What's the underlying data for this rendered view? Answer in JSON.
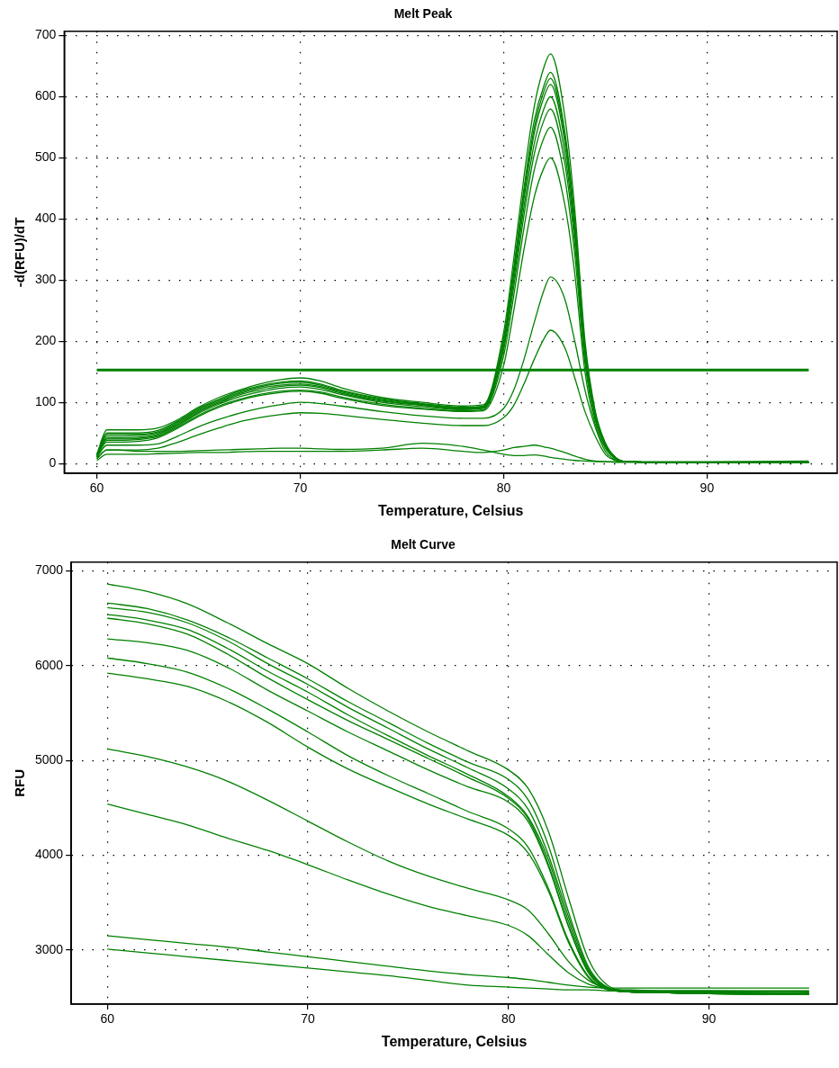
{
  "chart_data": [
    {
      "type": "line",
      "title": "Melt Peak",
      "xlabel": "Temperature, Celsius",
      "ylabel": "-d(RFU)/dT",
      "xlim": [
        58.4,
        96.4
      ],
      "xticks": [
        60,
        70,
        80,
        90
      ],
      "ylim": [
        -16,
        707
      ],
      "yticks": [
        0,
        100,
        200,
        300,
        400,
        500,
        600,
        700
      ],
      "grid": true,
      "x": [
        60,
        60.5,
        61,
        62,
        63,
        64,
        65,
        66,
        67,
        68,
        69,
        70,
        71,
        72,
        74,
        76,
        78,
        79,
        80,
        80.5,
        81,
        81.5,
        82,
        82.3,
        83,
        83.5,
        84,
        84.5,
        85,
        85.5,
        86,
        88,
        90,
        95
      ],
      "ref_lines": [
        {
          "axis": "y",
          "value": 153,
          "color": "#008000"
        }
      ],
      "series": [
        {
          "color": "#008000",
          "values": [
            15,
            55,
            55,
            55,
            58,
            72,
            92,
            108,
            120,
            130,
            137,
            140,
            135,
            124,
            108,
            100,
            94,
            96,
            214,
            335,
            469,
            583,
            650,
            670,
            570,
            415,
            201,
            87,
            34,
            10,
            3,
            2,
            2,
            2
          ]
        },
        {
          "color": "#008000",
          "values": [
            15,
            50,
            50,
            50,
            54,
            70,
            90,
            105,
            118,
            127,
            133,
            135,
            130,
            120,
            106,
            98,
            92,
            94,
            205,
            320,
            450,
            560,
            620,
            640,
            545,
            397,
            192,
            83,
            32,
            10,
            3,
            2,
            2,
            2
          ]
        },
        {
          "color": "#008000",
          "values": [
            14,
            48,
            48,
            48,
            52,
            68,
            88,
            103,
            116,
            125,
            131,
            133,
            128,
            119,
            105,
            97,
            91,
            93,
            202,
            315,
            441,
            548,
            611,
            630,
            536,
            391,
            189,
            82,
            32,
            9,
            3,
            2,
            2,
            2
          ]
        },
        {
          "color": "#008000",
          "values": [
            14,
            45,
            45,
            46,
            50,
            66,
            86,
            101,
            114,
            123,
            128,
            130,
            126,
            117,
            103,
            96,
            90,
            92,
            198,
            310,
            434,
            539,
            601,
            620,
            527,
            384,
            186,
            81,
            31,
            9,
            3,
            2,
            2,
            2
          ]
        },
        {
          "color": "#008000",
          "values": [
            13,
            42,
            42,
            43,
            48,
            64,
            84,
            99,
            112,
            120,
            126,
            128,
            124,
            115,
            102,
            95,
            89,
            91,
            192,
            300,
            420,
            522,
            582,
            600,
            510,
            372,
            180,
            78,
            30,
            9,
            3,
            2,
            2,
            2
          ]
        },
        {
          "color": "#008000",
          "values": [
            13,
            40,
            40,
            41,
            46,
            62,
            82,
            97,
            109,
            117,
            123,
            125,
            121,
            113,
            100,
            93,
            88,
            90,
            186,
            290,
            406,
            505,
            563,
            580,
            493,
            360,
            174,
            75,
            29,
            9,
            3,
            2,
            2,
            2
          ]
        },
        {
          "color": "#008000",
          "values": [
            12,
            38,
            38,
            39,
            44,
            60,
            79,
            94,
            105,
            113,
            118,
            120,
            117,
            109,
            97,
            90,
            86,
            88,
            176,
            275,
            385,
            479,
            534,
            550,
            468,
            341,
            165,
            72,
            28,
            8,
            3,
            2,
            2,
            2
          ]
        },
        {
          "color": "#008000",
          "values": [
            12,
            35,
            35,
            36,
            42,
            58,
            77,
            92,
            103,
            111,
            116,
            118,
            115,
            107,
            95,
            89,
            85,
            86,
            160,
            250,
            350,
            435,
            485,
            500,
            425,
            310,
            150,
            65,
            25,
            8,
            3,
            2,
            2,
            2
          ]
        },
        {
          "color": "#008000",
          "values": [
            10,
            30,
            30,
            30,
            32,
            45,
            60,
            72,
            82,
            90,
            96,
            100,
            98,
            94,
            85,
            78,
            74,
            74,
            90,
            120,
            170,
            230,
            285,
            305,
            270,
            200,
            120,
            60,
            20,
            6,
            3,
            2,
            2,
            2
          ]
        },
        {
          "color": "#008000",
          "values": [
            8,
            22,
            22,
            22,
            25,
            35,
            47,
            58,
            68,
            75,
            80,
            83,
            82,
            79,
            72,
            66,
            62,
            62,
            75,
            95,
            130,
            170,
            205,
            218,
            190,
            140,
            85,
            45,
            15,
            5,
            3,
            2,
            2,
            2
          ]
        },
        {
          "color": "#008000",
          "values": [
            8,
            22,
            22,
            20,
            20,
            20,
            21,
            22,
            23,
            24,
            25,
            25,
            24,
            23,
            25,
            33,
            28,
            22,
            15,
            13,
            13,
            14,
            12,
            10,
            7,
            5,
            4,
            3,
            3,
            3,
            3,
            3,
            3,
            4
          ]
        },
        {
          "color": "#008000",
          "values": [
            5,
            15,
            15,
            15,
            16,
            17,
            18,
            18,
            19,
            20,
            20,
            20,
            20,
            20,
            22,
            25,
            20,
            18,
            22,
            26,
            28,
            30,
            27,
            25,
            18,
            12,
            7,
            4,
            3,
            2,
            2,
            2,
            2,
            2
          ]
        }
      ]
    },
    {
      "type": "line",
      "title": "Melt Curve",
      "xlabel": "Temperature, Celsius",
      "ylabel": "RFU",
      "xlim": [
        58.2,
        96.4
      ],
      "xticks": [
        60,
        70,
        80,
        90
      ],
      "ylim": [
        2430,
        7090
      ],
      "yticks": [
        3000,
        4000,
        5000,
        6000,
        7000
      ],
      "grid": true,
      "x": [
        60,
        62,
        64,
        66,
        68,
        70,
        72,
        74,
        76,
        78,
        80,
        81,
        82,
        83,
        84,
        85,
        86,
        88,
        90,
        95
      ],
      "series": [
        {
          "color": "#008000",
          "values": [
            6860,
            6780,
            6650,
            6450,
            6230,
            6020,
            5760,
            5520,
            5300,
            5100,
            4900,
            4700,
            4250,
            3550,
            2900,
            2620,
            2570,
            2560,
            2550,
            2540
          ]
        },
        {
          "color": "#008000",
          "values": [
            6660,
            6600,
            6480,
            6300,
            6080,
            5860,
            5620,
            5400,
            5180,
            4980,
            4800,
            4580,
            4100,
            3400,
            2820,
            2600,
            2560,
            2550,
            2550,
            2540
          ]
        },
        {
          "color": "#008000",
          "values": [
            6610,
            6560,
            6450,
            6260,
            6020,
            5800,
            5560,
            5340,
            5120,
            4920,
            4700,
            4480,
            4000,
            3350,
            2800,
            2600,
            2560,
            2550,
            2540,
            2530
          ]
        },
        {
          "color": "#008000",
          "values": [
            6540,
            6480,
            6380,
            6180,
            5940,
            5720,
            5480,
            5260,
            5050,
            4850,
            4620,
            4400,
            3950,
            3300,
            2780,
            2590,
            2560,
            2550,
            2540,
            2530
          ]
        },
        {
          "color": "#008000",
          "values": [
            6500,
            6440,
            6330,
            6120,
            5870,
            5640,
            5420,
            5220,
            5020,
            4820,
            4600,
            4380,
            3900,
            3250,
            2760,
            2590,
            2560,
            2550,
            2540,
            2530
          ]
        },
        {
          "color": "#008000",
          "values": [
            6280,
            6240,
            6160,
            5980,
            5740,
            5520,
            5300,
            5100,
            4900,
            4720,
            4560,
            4350,
            3880,
            3250,
            2760,
            2590,
            2560,
            2550,
            2540,
            2530
          ]
        },
        {
          "color": "#008000",
          "values": [
            6080,
            6020,
            5930,
            5760,
            5540,
            5300,
            5050,
            4840,
            4650,
            4460,
            4280,
            4080,
            3650,
            3100,
            2720,
            2580,
            2560,
            2550,
            2540,
            2530
          ]
        },
        {
          "color": "#008000",
          "values": [
            5920,
            5860,
            5780,
            5620,
            5400,
            5140,
            4910,
            4720,
            4540,
            4380,
            4210,
            4020,
            3620,
            3080,
            2710,
            2580,
            2560,
            2550,
            2540,
            2530
          ]
        },
        {
          "color": "#008000",
          "values": [
            5120,
            5040,
            4930,
            4780,
            4580,
            4360,
            4140,
            3940,
            3780,
            3650,
            3530,
            3420,
            3170,
            2880,
            2680,
            2590,
            2570,
            2560,
            2560,
            2550
          ]
        },
        {
          "color": "#008000",
          "values": [
            4540,
            4430,
            4320,
            4180,
            4050,
            3900,
            3740,
            3590,
            3460,
            3360,
            3260,
            3150,
            2950,
            2760,
            2640,
            2590,
            2580,
            2570,
            2570,
            2560
          ]
        },
        {
          "color": "#008000",
          "values": [
            3150,
            3110,
            3070,
            3030,
            2980,
            2930,
            2880,
            2830,
            2780,
            2740,
            2710,
            2690,
            2660,
            2630,
            2610,
            2600,
            2600,
            2600,
            2600,
            2600
          ]
        },
        {
          "color": "#008000",
          "values": [
            3010,
            2970,
            2930,
            2890,
            2850,
            2810,
            2770,
            2730,
            2680,
            2630,
            2610,
            2600,
            2590,
            2580,
            2580,
            2570,
            2570,
            2570,
            2570,
            2570
          ]
        }
      ]
    }
  ]
}
